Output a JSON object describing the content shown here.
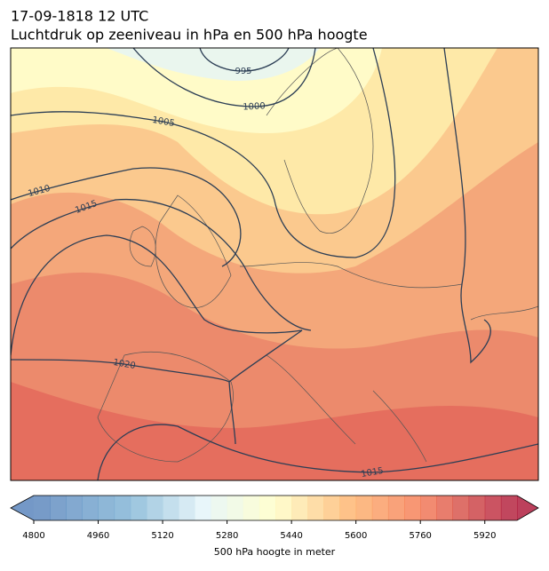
{
  "chart_data": {
    "type": "map",
    "title": "17-09-1818 12 UTC",
    "subtitle": "Luchtdruk op zeeniveau in hPa en 500 hPa hoogte",
    "contour_labels": [
      "995",
      "1000",
      "1005",
      "1010",
      "1015",
      "1020",
      "1015"
    ],
    "colorbar": {
      "label": "500 hPa hoogte in meter",
      "lim": [
        4800,
        6000
      ],
      "ticks": [
        4800,
        4960,
        5120,
        5280,
        5440,
        5600,
        5760,
        5920
      ]
    }
  }
}
